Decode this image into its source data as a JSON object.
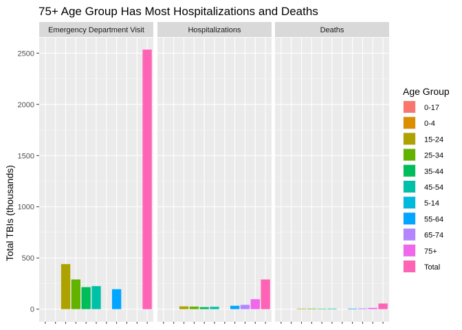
{
  "chart_data": {
    "type": "bar",
    "title": "75+ Age Group Has Most Hospitalizations and Deaths",
    "xlabel": "",
    "ylabel": "Total TBIs (thousands)",
    "ylim": [
      0,
      2650
    ],
    "yticks": [
      0,
      500,
      1000,
      1500,
      2000,
      2500
    ],
    "grid": true,
    "legend_position": "right",
    "legend_title": "Age Group",
    "categories": [
      "0-17",
      "0-4",
      "15-24",
      "25-34",
      "35-44",
      "45-54",
      "5-14",
      "55-64",
      "65-74",
      "75+",
      "Total"
    ],
    "colors": [
      "#F8766D",
      "#DB8E00",
      "#AEA200",
      "#64B200",
      "#00BD5C",
      "#00C1A7",
      "#00BADE",
      "#00A6FF",
      "#B385FF",
      "#EF67EB",
      "#FF63B6"
    ],
    "facets": [
      {
        "label": "Emergency Department Visit",
        "values": [
          0,
          0,
          440,
          290,
          215,
          225,
          0,
          195,
          0,
          0,
          2535
        ]
      },
      {
        "label": "Hospitalizations",
        "values": [
          0,
          0,
          27,
          25,
          20,
          23,
          0,
          33,
          42,
          97,
          290
        ]
      },
      {
        "label": "Deaths",
        "values": [
          0,
          0,
          5,
          5,
          4,
          5,
          0,
          5,
          7,
          12,
          55
        ]
      }
    ]
  }
}
